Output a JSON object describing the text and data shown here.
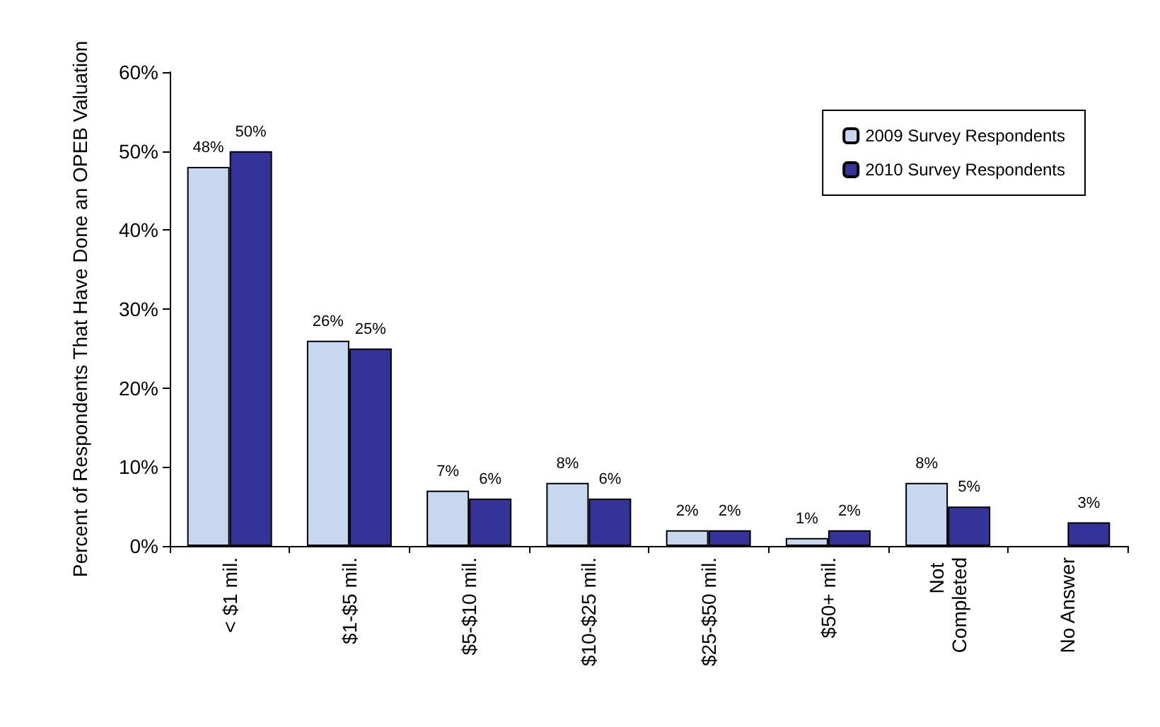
{
  "chart_data": {
    "type": "bar",
    "ylabel": "Percent of Respondents That Have Done an OPEB Valuation",
    "categories": [
      "< $1 mil.",
      "$1-$5 mil.",
      "$5-$10 mil.",
      "$10-$25 mil.",
      "$25-$50 mil.",
      "$50+ mil.",
      "Not Completed",
      "No Answer"
    ],
    "series": [
      {
        "name": "2009 Survey Respondents",
        "color": "#c6d7ef",
        "values": [
          48,
          26,
          7,
          8,
          2,
          1,
          8,
          null
        ],
        "value_labels": [
          "48%",
          "26%",
          "7%",
          "8%",
          "2%",
          "1%",
          "8%",
          null
        ]
      },
      {
        "name": "2010 Survey Respondents",
        "color": "#333399",
        "values": [
          50,
          25,
          6,
          6,
          2,
          2,
          5,
          3
        ],
        "value_labels": [
          "50%",
          "25%",
          "6%",
          "6%",
          "2%",
          "2%",
          "5%",
          "3%"
        ]
      }
    ],
    "ylim": [
      0,
      60
    ],
    "yticks": [
      {
        "value": 0,
        "label": "0%"
      },
      {
        "value": 10,
        "label": "10%"
      },
      {
        "value": 20,
        "label": "20%"
      },
      {
        "value": 30,
        "label": "30%"
      },
      {
        "value": 40,
        "label": "40%"
      },
      {
        "value": 50,
        "label": "50%"
      },
      {
        "value": 60,
        "label": "60%"
      }
    ],
    "grid": false,
    "legend": "top right"
  }
}
